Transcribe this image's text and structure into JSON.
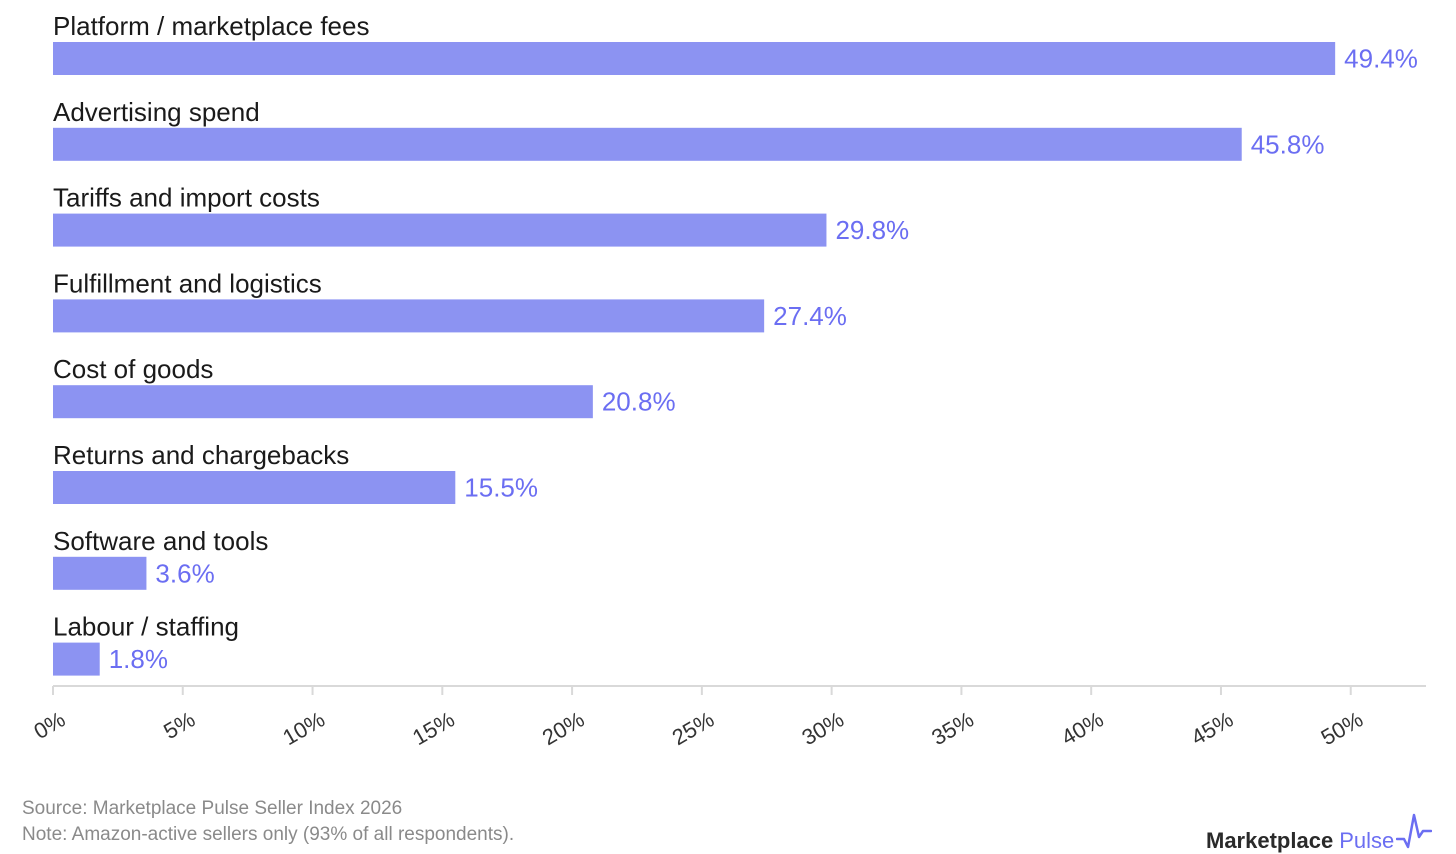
{
  "chart_data": {
    "type": "bar",
    "orientation": "horizontal",
    "categories": [
      "Platform / marketplace fees",
      "Advertising spend",
      "Tariffs and import costs",
      "Fulfillment and logistics",
      "Cost of goods",
      "Returns and chargebacks",
      "Software and tools",
      "Labour / staffing"
    ],
    "values": [
      49.4,
      45.8,
      29.8,
      27.4,
      20.8,
      15.5,
      3.6,
      1.8
    ],
    "value_labels": [
      "49.4%",
      "45.8%",
      "29.8%",
      "27.4%",
      "20.8%",
      "15.5%",
      "3.6%",
      "1.8%"
    ],
    "xlim": [
      0,
      52.9
    ],
    "xticks": [
      0,
      5,
      10,
      15,
      20,
      25,
      30,
      35,
      40,
      45,
      50
    ],
    "xtick_labels": [
      "0%",
      "5%",
      "10%",
      "15%",
      "20%",
      "25%",
      "30%",
      "35%",
      "40%",
      "45%",
      "50%"
    ],
    "grid": false,
    "legend": "none"
  },
  "footer": {
    "source": "Source: Marketplace Pulse Seller Index 2026",
    "note": "Note: Amazon-active sellers only (93% of all respondents)."
  },
  "brand": {
    "name": "Marketplace",
    "accent": "Pulse",
    "icon": "pulse-line-icon"
  },
  "colors": {
    "bar": "#8c93f2",
    "value_label": "#6b6ef2",
    "category_label": "#1a1a1a",
    "axis": "#d9d9d9",
    "tick_label": "#333333",
    "footer_text": "#8a8a8a"
  }
}
